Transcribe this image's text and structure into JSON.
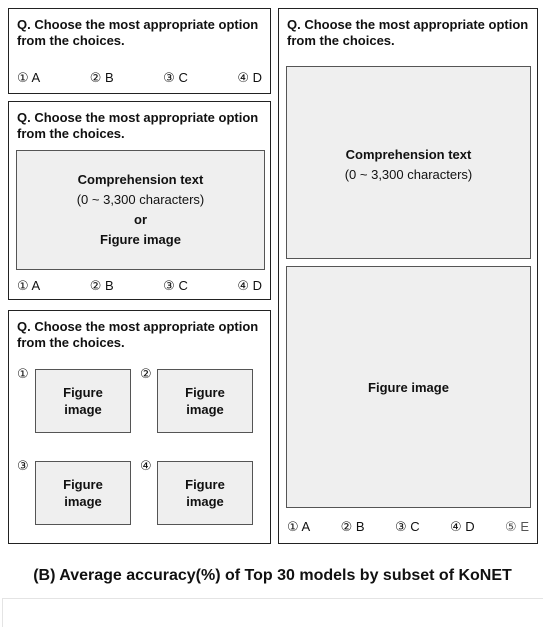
{
  "question": "Q. Choose the most appropriate option from the choices.",
  "options4": [
    "① A",
    "② B",
    "③ C",
    "④ D"
  ],
  "options5": [
    "① A",
    "② B",
    "③ C",
    "④ D",
    "⑤ E"
  ],
  "comprehension_title": "Comprehension text",
  "comprehension_range": "(0 ~ 3,300 characters)",
  "or_label": "or",
  "figure_image": "Figure image",
  "figure_word": "Figure",
  "image_word": "image",
  "markers": [
    "①",
    "②",
    "③",
    "④"
  ],
  "caption": "(B) Average accuracy(%) of Top 30 models by subset of KoNET"
}
